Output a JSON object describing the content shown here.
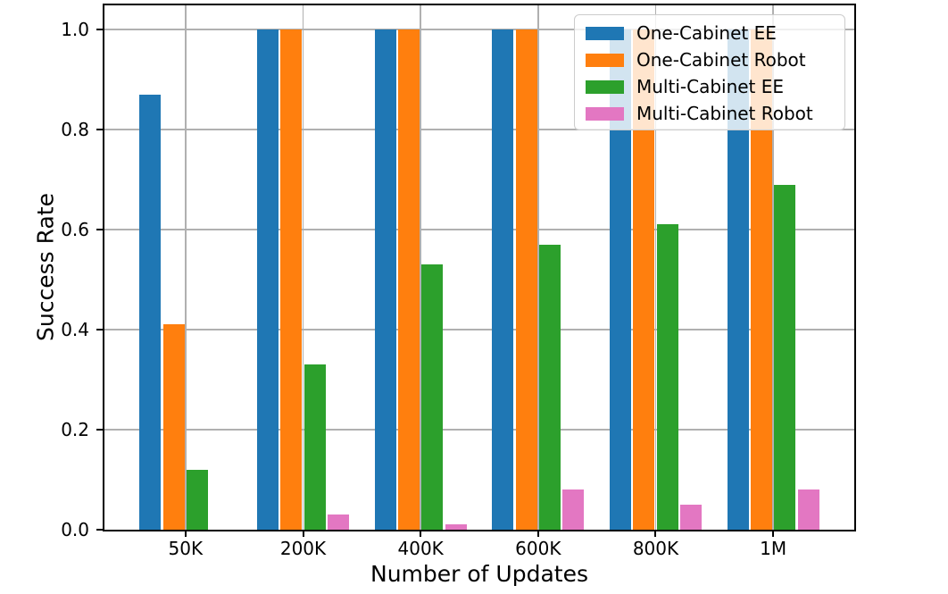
{
  "chart_data": {
    "type": "bar",
    "title": "",
    "xlabel": "Number of Updates",
    "ylabel": "Success Rate",
    "categories": [
      "50K",
      "200K",
      "400K",
      "600K",
      "800K",
      "1M"
    ],
    "series": [
      {
        "name": "One-Cabinet EE",
        "color": "#1f77b4",
        "values": [
          0.87,
          1.0,
          1.0,
          1.0,
          1.0,
          1.0
        ]
      },
      {
        "name": "One-Cabinet Robot",
        "color": "#ff7f0e",
        "values": [
          0.41,
          1.0,
          1.0,
          1.0,
          1.0,
          1.0
        ]
      },
      {
        "name": "Multi-Cabinet EE",
        "color": "#2ca02c",
        "values": [
          0.12,
          0.33,
          0.53,
          0.57,
          0.61,
          0.69
        ]
      },
      {
        "name": "Multi-Cabinet Robot",
        "color": "#e377c2",
        "values": [
          0.0,
          0.03,
          0.01,
          0.08,
          0.05,
          0.08
        ]
      }
    ],
    "ylim": [
      0,
      1.048
    ],
    "yticks": [
      "0.0",
      "0.2",
      "0.4",
      "0.6",
      "0.8",
      "1.0"
    ],
    "grid": true,
    "grid_color": "#b0b0b0",
    "axis_color": "#000000",
    "legend_position": "upper right",
    "background": "#ffffff"
  }
}
